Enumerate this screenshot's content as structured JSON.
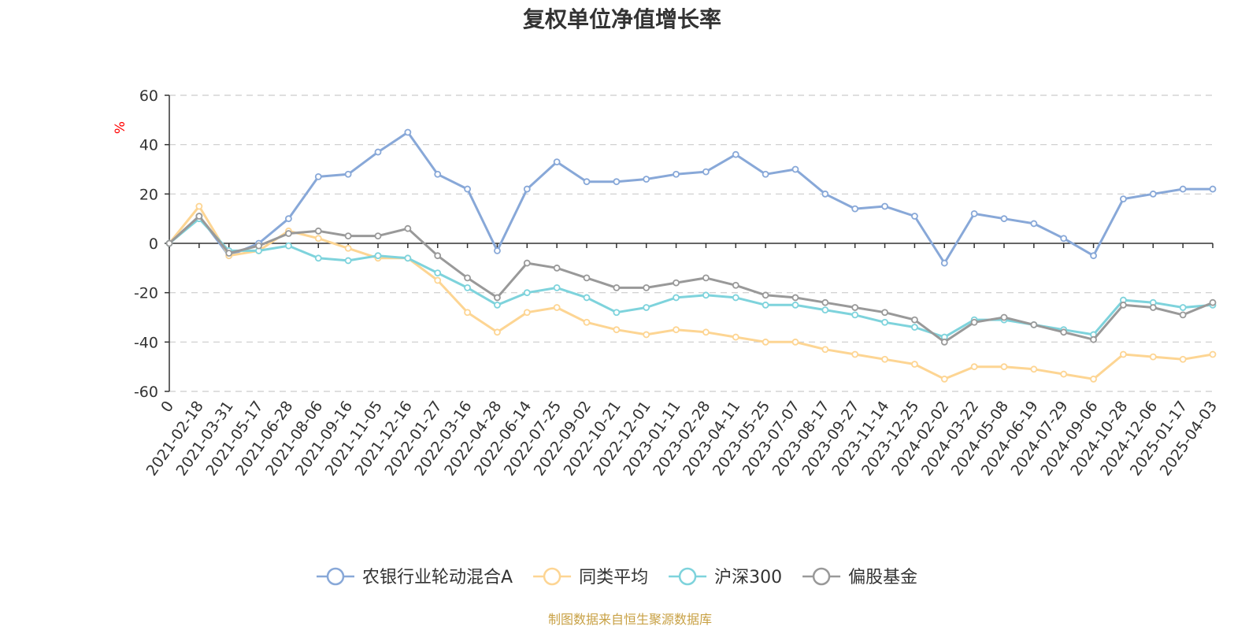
{
  "chart_data": {
    "type": "line",
    "title": "复权单位净值增长率",
    "ylabel": "%",
    "xlabel": "",
    "ylim": [
      -60,
      60
    ],
    "yticks": [
      60,
      40,
      20,
      0,
      -20,
      -40,
      -60
    ],
    "x_tick_labels": [
      "0",
      "2021-02-18",
      "2021-03-31",
      "2021-05-17",
      "2021-06-28",
      "2021-08-06",
      "2021-09-16",
      "2021-11-05",
      "2021-12-16",
      "2022-01-27",
      "2022-03-16",
      "2022-04-28",
      "2022-06-14",
      "2022-07-25",
      "2022-09-02",
      "2022-10-21",
      "2022-12-01",
      "2023-01-11",
      "2023-02-28",
      "2023-04-11",
      "2023-05-25",
      "2023-07-07",
      "2023-08-17",
      "2023-09-27",
      "2023-11-14",
      "2023-12-25",
      "2024-02-02",
      "2024-03-22",
      "2024-05-08",
      "2024-06-19",
      "2024-07-29",
      "2024-09-06",
      "2024-10-28",
      "2024-12-06",
      "2025-01-17",
      "2025-04-03"
    ],
    "x": [
      "0",
      "2021-02-18",
      "2021-03-31",
      "2021-05-17",
      "2021-06-28",
      "2021-08-06",
      "2021-09-16",
      "2021-11-05",
      "2021-12-16",
      "2022-01-27",
      "2022-03-16",
      "2022-04-28",
      "2022-06-14",
      "2022-07-25",
      "2022-09-02",
      "2022-10-21",
      "2022-12-01",
      "2023-01-11",
      "2023-02-28",
      "2023-04-11",
      "2023-05-25",
      "2023-07-07",
      "2023-08-17",
      "2023-09-27",
      "2023-11-14",
      "2023-12-25",
      "2024-02-02",
      "2024-03-22",
      "2024-05-08",
      "2024-06-19",
      "2024-07-29",
      "2024-09-06",
      "2024-10-28",
      "2024-12-06",
      "2025-01-17",
      "2025-04-03"
    ],
    "series": [
      {
        "name": "农银行业轮动混合A",
        "color": "#88a8d8",
        "values": [
          0,
          11,
          -5,
          0,
          10,
          27,
          28,
          37,
          45,
          28,
          22,
          -3,
          22,
          33,
          25,
          25,
          26,
          28,
          29,
          36,
          28,
          30,
          20,
          14,
          15,
          11,
          -8,
          12,
          10,
          8,
          2,
          -5,
          18,
          20,
          22,
          22
        ]
      },
      {
        "name": "同类平均",
        "color": "#fdd593",
        "values": [
          0,
          15,
          -5,
          -3,
          5,
          2,
          -2,
          -6,
          -6,
          -15,
          -28,
          -36,
          -28,
          -26,
          -32,
          -35,
          -37,
          -35,
          -36,
          -38,
          -40,
          -40,
          -43,
          -45,
          -47,
          -49,
          -55,
          -50,
          -50,
          -51,
          -53,
          -55,
          -45,
          -46,
          -47,
          -45
        ]
      },
      {
        "name": "沪深300",
        "color": "#7ed3dc",
        "values": [
          0,
          10,
          -3,
          -3,
          -1,
          -6,
          -7,
          -5,
          -6,
          -12,
          -18,
          -25,
          -20,
          -18,
          -22,
          -28,
          -26,
          -22,
          -21,
          -22,
          -25,
          -25,
          -27,
          -29,
          -32,
          -34,
          -38,
          -31,
          -31,
          -33,
          -35,
          -37,
          -23,
          -24,
          -26,
          -25
        ]
      },
      {
        "name": "偏股基金",
        "color": "#999999",
        "values": [
          0,
          11,
          -4,
          -1,
          4,
          5,
          3,
          3,
          6,
          -5,
          -14,
          -22,
          -8,
          -10,
          -14,
          -18,
          -18,
          -16,
          -14,
          -17,
          -21,
          -22,
          -24,
          -26,
          -28,
          -31,
          -40,
          -32,
          -30,
          -33,
          -36,
          -39,
          -25,
          -26,
          -29,
          -24
        ]
      }
    ],
    "legend_position": "bottom-center",
    "grid": true
  },
  "source_note": "制图数据来自恒生聚源数据库"
}
